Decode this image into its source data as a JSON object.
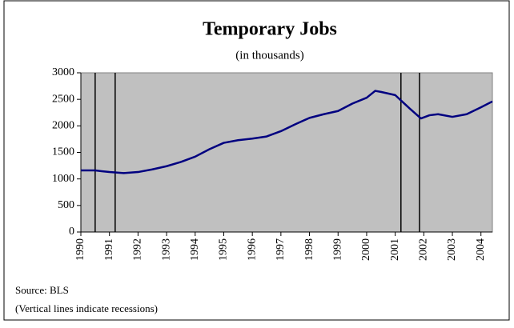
{
  "chart_data": {
    "type": "line",
    "title": "Temporary Jobs",
    "subtitle": "(in thousands)",
    "source": "Source:  BLS",
    "note": "(Vertical lines indicate recessions)",
    "x": [
      1990,
      1990.5,
      1991,
      1991.5,
      1992,
      1992.5,
      1993,
      1993.5,
      1994,
      1994.5,
      1995,
      1995.5,
      1996,
      1996.5,
      1997,
      1997.5,
      1998,
      1998.5,
      1999,
      1999.5,
      2000,
      2000.3,
      2000.5,
      2001,
      2001.5,
      2001.9,
      2002.2,
      2002.5,
      2003,
      2003.5,
      2004,
      2004.4
    ],
    "series": [
      {
        "name": "Temporary Jobs",
        "color": "#000080",
        "values": [
          1160,
          1160,
          1130,
          1110,
          1130,
          1180,
          1240,
          1320,
          1420,
          1560,
          1680,
          1730,
          1760,
          1800,
          1900,
          2030,
          2150,
          2220,
          2280,
          2420,
          2530,
          2660,
          2640,
          2580,
          2330,
          2140,
          2200,
          2220,
          2170,
          2220,
          2350,
          2460
        ]
      }
    ],
    "recessions": [
      1990.5,
      1991.2,
      2001.2,
      2001.85
    ],
    "xlim": [
      1990,
      2004.4
    ],
    "xticks": [
      1990,
      1991,
      1992,
      1993,
      1994,
      1995,
      1996,
      1997,
      1998,
      1999,
      2000,
      2001,
      2002,
      2003,
      2004
    ],
    "ylim": [
      0,
      3000
    ],
    "yticks": [
      0,
      500,
      1000,
      1500,
      2000,
      2500,
      3000
    ],
    "plot_background": "#c0c0c0"
  }
}
